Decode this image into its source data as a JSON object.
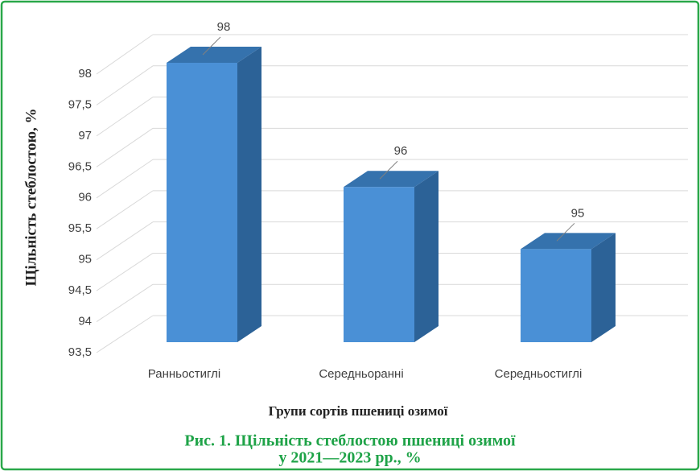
{
  "chart_data": {
    "type": "bar3d",
    "title": [
      "Рис. 1. Щільність стеблостою пшениці озимої",
      "у 2021—2023 рр., %"
    ],
    "x_label": "Групи сортів пшениці озимої",
    "y_label": "Щільність стеблостою, %",
    "categories": [
      "Ранньостиглі",
      "Середньоранні",
      "Середньостиглі"
    ],
    "values": [
      98,
      96,
      95
    ],
    "color": "#4a90d6",
    "ylim": [
      93.5,
      98
    ],
    "yticks": [
      {
        "value": 93.5,
        "label": "93,5"
      },
      94,
      {
        "value": 94.5,
        "label": "94,5"
      },
      95,
      {
        "value": 95.5,
        "label": "95,5"
      },
      96,
      {
        "value": 96.5,
        "label": "96,5"
      },
      97,
      {
        "value": 97.5,
        "label": "97,5"
      },
      98
    ],
    "grid": true
  }
}
